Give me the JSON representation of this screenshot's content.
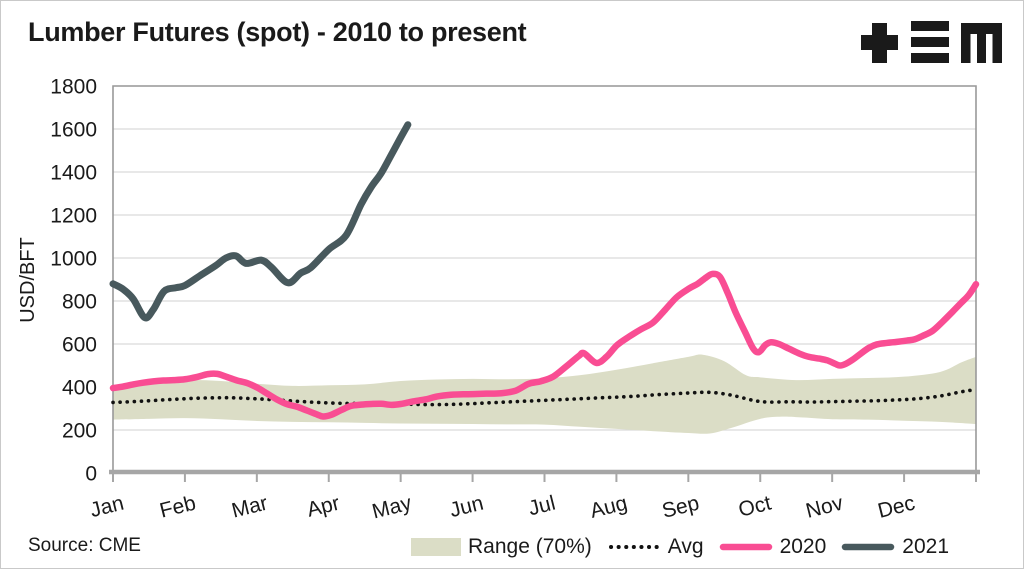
{
  "title": "Lumber Futures (spot) - 2010 to present",
  "source": "Source: CME",
  "logo": {
    "name": "plus-triple-bar-M-logo",
    "color": "#1a1a1a"
  },
  "colors": {
    "text": "#1a1a1a",
    "gridline": "#d9d9d9",
    "plot_border": "#999999",
    "axis_line": "#a6a6a6",
    "band": "#dbddc6",
    "avg": "#111111",
    "line_2020": "#f94d93",
    "line_2021": "#48595d"
  },
  "chart_data": {
    "type": "line",
    "title": "Lumber Futures (spot) - 2010 to present",
    "xlabel": "",
    "ylabel": "USD/BFT",
    "ylim": [
      0,
      1800
    ],
    "yticks": [
      0,
      200,
      400,
      600,
      800,
      1000,
      1200,
      1400,
      1600,
      1800
    ],
    "x_categories": [
      "Jan",
      "Feb",
      "Mar",
      "Apr",
      "May",
      "Jun",
      "Jul",
      "Aug",
      "Sep",
      "Oct",
      "Nov",
      "Dec"
    ],
    "x_unit": "month position (0 = Jan 1, 12 = Dec 31)",
    "grid": "horizontal",
    "legend_position": "bottom-right",
    "series": [
      {
        "name": "Range (70%)",
        "type": "band",
        "color": "#dbddc6",
        "top": [
          [
            0,
            400
          ],
          [
            0.5,
            420
          ],
          [
            1,
            432
          ],
          [
            1.5,
            428
          ],
          [
            2,
            415
          ],
          [
            2.5,
            405
          ],
          [
            3,
            408
          ],
          [
            3.5,
            412
          ],
          [
            4,
            428
          ],
          [
            4.5,
            435
          ],
          [
            5,
            438
          ],
          [
            5.5,
            436
          ],
          [
            6,
            440
          ],
          [
            6.5,
            455
          ],
          [
            7,
            480
          ],
          [
            7.5,
            510
          ],
          [
            8,
            540
          ],
          [
            8.2,
            550
          ],
          [
            8.5,
            520
          ],
          [
            8.8,
            455
          ],
          [
            9,
            445
          ],
          [
            9.5,
            432
          ],
          [
            10,
            438
          ],
          [
            10.5,
            442
          ],
          [
            11,
            448
          ],
          [
            11.5,
            470
          ],
          [
            11.8,
            515
          ],
          [
            12,
            540
          ]
        ],
        "bottom": [
          [
            0,
            248
          ],
          [
            0.5,
            252
          ],
          [
            1,
            255
          ],
          [
            1.5,
            250
          ],
          [
            2,
            242
          ],
          [
            2.5,
            238
          ],
          [
            3,
            236
          ],
          [
            3.5,
            233
          ],
          [
            4,
            230
          ],
          [
            4.5,
            229
          ],
          [
            5,
            228
          ],
          [
            5.5,
            226
          ],
          [
            6,
            225
          ],
          [
            6.5,
            215
          ],
          [
            7,
            205
          ],
          [
            7.5,
            195
          ],
          [
            8,
            186
          ],
          [
            8.3,
            184
          ],
          [
            8.6,
            210
          ],
          [
            9,
            252
          ],
          [
            9.3,
            262
          ],
          [
            9.6,
            258
          ],
          [
            10,
            250
          ],
          [
            10.5,
            248
          ],
          [
            11,
            243
          ],
          [
            11.5,
            238
          ],
          [
            12,
            228
          ]
        ]
      },
      {
        "name": "Avg",
        "type": "dotted-line",
        "color": "#111111",
        "points": [
          [
            0,
            328
          ],
          [
            0.4,
            334
          ],
          [
            0.8,
            342
          ],
          [
            1.2,
            348
          ],
          [
            1.6,
            350
          ],
          [
            2,
            345
          ],
          [
            2.4,
            337
          ],
          [
            2.8,
            329
          ],
          [
            3.2,
            324
          ],
          [
            3.6,
            324
          ],
          [
            4,
            321
          ],
          [
            4.4,
            318
          ],
          [
            4.8,
            320
          ],
          [
            5.2,
            326
          ],
          [
            5.6,
            332
          ],
          [
            6,
            338
          ],
          [
            6.4,
            344
          ],
          [
            6.8,
            350
          ],
          [
            7.2,
            356
          ],
          [
            7.6,
            365
          ],
          [
            8,
            372
          ],
          [
            8.3,
            375
          ],
          [
            8.6,
            362
          ],
          [
            8.9,
            338
          ],
          [
            9.1,
            330
          ],
          [
            9.4,
            331
          ],
          [
            9.7,
            330
          ],
          [
            10,
            332
          ],
          [
            10.3,
            334
          ],
          [
            10.6,
            336
          ],
          [
            10.9,
            340
          ],
          [
            11.2,
            346
          ],
          [
            11.5,
            358
          ],
          [
            11.8,
            378
          ],
          [
            12,
            388
          ]
        ]
      },
      {
        "name": "2020",
        "type": "line",
        "color": "#f94d93",
        "points": [
          [
            0,
            395
          ],
          [
            0.14,
            402
          ],
          [
            0.28,
            412
          ],
          [
            0.42,
            420
          ],
          [
            0.56,
            426
          ],
          [
            0.7,
            430
          ],
          [
            0.84,
            432
          ],
          [
            1,
            436
          ],
          [
            1.17,
            447
          ],
          [
            1.32,
            460
          ],
          [
            1.45,
            461
          ],
          [
            1.59,
            446
          ],
          [
            1.72,
            431
          ],
          [
            1.86,
            419
          ],
          [
            2,
            398
          ],
          [
            2.14,
            370
          ],
          [
            2.28,
            342
          ],
          [
            2.42,
            320
          ],
          [
            2.56,
            308
          ],
          [
            2.7,
            290
          ],
          [
            2.84,
            272
          ],
          [
            2.92,
            263
          ],
          [
            3.03,
            270
          ],
          [
            3.17,
            292
          ],
          [
            3.31,
            312
          ],
          [
            3.45,
            318
          ],
          [
            3.59,
            321
          ],
          [
            3.73,
            322
          ],
          [
            3.87,
            317
          ],
          [
            4,
            321
          ],
          [
            4.17,
            333
          ],
          [
            4.34,
            342
          ],
          [
            4.51,
            356
          ],
          [
            4.7,
            364
          ],
          [
            4.87,
            366
          ],
          [
            5.01,
            367
          ],
          [
            5.19,
            369
          ],
          [
            5.4,
            371
          ],
          [
            5.6,
            383
          ],
          [
            5.78,
            415
          ],
          [
            5.95,
            427
          ],
          [
            6.12,
            448
          ],
          [
            6.3,
            495
          ],
          [
            6.48,
            545
          ],
          [
            6.55,
            557
          ],
          [
            6.72,
            512
          ],
          [
            6.86,
            540
          ],
          [
            7.01,
            595
          ],
          [
            7.18,
            635
          ],
          [
            7.34,
            668
          ],
          [
            7.51,
            700
          ],
          [
            7.68,
            760
          ],
          [
            7.84,
            818
          ],
          [
            8.01,
            858
          ],
          [
            8.13,
            880
          ],
          [
            8.25,
            910
          ],
          [
            8.34,
            926
          ],
          [
            8.44,
            912
          ],
          [
            8.55,
            835
          ],
          [
            8.66,
            745
          ],
          [
            8.79,
            655
          ],
          [
            8.9,
            580
          ],
          [
            8.98,
            562
          ],
          [
            9.07,
            595
          ],
          [
            9.15,
            608
          ],
          [
            9.26,
            600
          ],
          [
            9.4,
            578
          ],
          [
            9.54,
            556
          ],
          [
            9.68,
            540
          ],
          [
            9.82,
            532
          ],
          [
            9.93,
            524
          ],
          [
            10.04,
            508
          ],
          [
            10.11,
            500
          ],
          [
            10.19,
            508
          ],
          [
            10.29,
            528
          ],
          [
            10.4,
            556
          ],
          [
            10.51,
            582
          ],
          [
            10.62,
            598
          ],
          [
            10.76,
            605
          ],
          [
            10.9,
            610
          ],
          [
            11.04,
            616
          ],
          [
            11.15,
            622
          ],
          [
            11.26,
            638
          ],
          [
            11.4,
            662
          ],
          [
            11.54,
            705
          ],
          [
            11.68,
            752
          ],
          [
            11.79,
            790
          ],
          [
            11.9,
            828
          ],
          [
            12,
            878
          ]
        ]
      },
      {
        "name": "2021",
        "type": "line",
        "color": "#48595d",
        "points": [
          [
            0,
            880
          ],
          [
            0.14,
            855
          ],
          [
            0.28,
            810
          ],
          [
            0.44,
            723
          ],
          [
            0.56,
            760
          ],
          [
            0.71,
            845
          ],
          [
            0.88,
            862
          ],
          [
            1,
            872
          ],
          [
            1.22,
            920
          ],
          [
            1.43,
            965
          ],
          [
            1.57,
            1000
          ],
          [
            1.71,
            1010
          ],
          [
            1.85,
            975
          ],
          [
            2.06,
            990
          ],
          [
            2.2,
            958
          ],
          [
            2.43,
            885
          ],
          [
            2.61,
            930
          ],
          [
            2.75,
            955
          ],
          [
            3,
            1040
          ],
          [
            3.24,
            1105
          ],
          [
            3.45,
            1250
          ],
          [
            3.59,
            1330
          ],
          [
            3.73,
            1395
          ],
          [
            3.87,
            1480
          ],
          [
            4,
            1560
          ],
          [
            4.1,
            1620
          ]
        ]
      }
    ]
  }
}
